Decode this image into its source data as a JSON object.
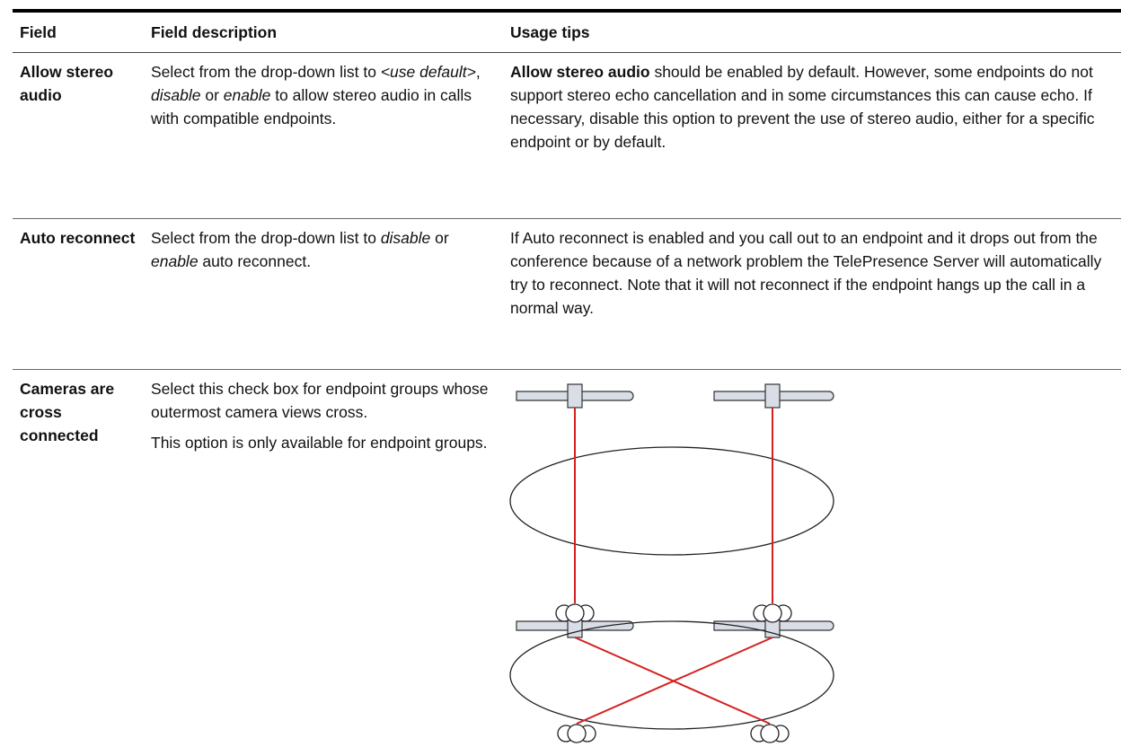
{
  "table": {
    "header": [
      "Field",
      "Field description",
      "Usage tips"
    ],
    "rows": [
      {
        "field": "Allow stereo audio",
        "description": [
          "Select from the drop-down list to ",
          "<use default>",
          ", ",
          "disable",
          " or ",
          "enable",
          " to allow stereo audio in calls with compatible endpoints."
        ],
        "tips": [
          "Allow stereo audio",
          " should be enabled by default. However, some endpoints do not support stereo echo cancellation and in some circumstances this can cause echo. If necessary, disable this option to prevent the use of stereo audio, either for a specific endpoint or by default."
        ]
      },
      {
        "field": "Auto reconnect",
        "description": [
          "Select from the drop-down list to ",
          "disable",
          " or ",
          "enable",
          " auto reconnect."
        ],
        "tips": [
          "If Auto reconnect is enabled and you call out to an endpoint and it drops out from the conference because of a network problem the TelePresence Server will automatically try to reconnect. Note that it will not reconnect if the endpoint hangs up the call in a normal way."
        ]
      },
      {
        "field": "Cameras are cross connected",
        "description": [
          "Select this check box for endpoint groups whose outermost camera views cross.",
          "This option is only available for endpoint groups."
        ]
      }
    ]
  }
}
